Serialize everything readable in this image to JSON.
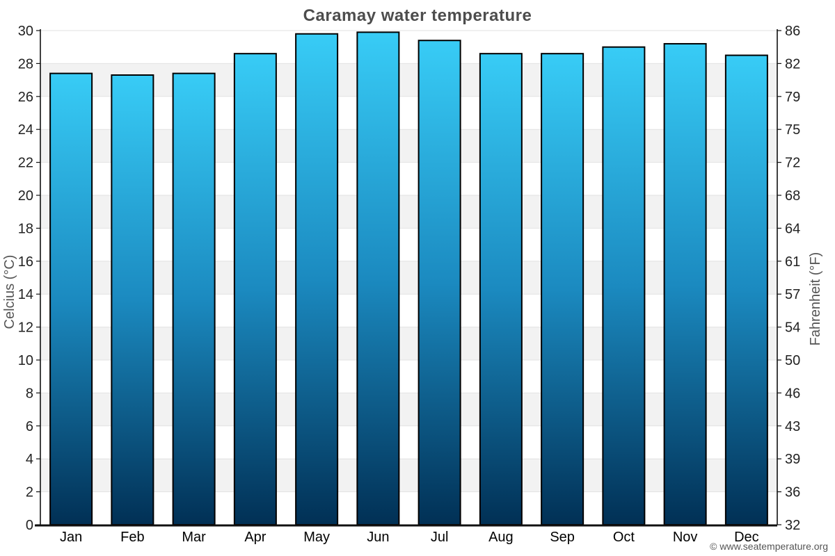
{
  "title": "Caramay water temperature",
  "footer": {
    "credit": "© www.seatemperature.org"
  },
  "chart_data": {
    "type": "bar",
    "title": "Caramay water temperature",
    "categories": [
      "Jan",
      "Feb",
      "Mar",
      "Apr",
      "May",
      "Jun",
      "Jul",
      "Aug",
      "Sep",
      "Oct",
      "Nov",
      "Dec"
    ],
    "series": [
      {
        "name": "Water temperature",
        "unit": "°C",
        "values": [
          27.4,
          27.3,
          27.4,
          28.6,
          29.8,
          29.9,
          29.4,
          28.6,
          28.6,
          29.0,
          29.2,
          28.5
        ]
      }
    ],
    "xlabel": "",
    "ylabel_left": "Celcius (°C)",
    "ylabel_right": "Fahrenheit (°F)",
    "ylim": [
      0,
      30
    ],
    "y_left_ticks": [
      0,
      2,
      4,
      6,
      8,
      10,
      12,
      14,
      16,
      18,
      20,
      22,
      24,
      26,
      28,
      30
    ],
    "y_right_tick_labels": [
      "32",
      "36",
      "39",
      "43",
      "46",
      "50",
      "54",
      "57",
      "61",
      "64",
      "68",
      "72",
      "75",
      "79",
      "82",
      "86"
    ],
    "grid": true,
    "legend_position": "none",
    "band_alternating": true,
    "colors": {
      "bar_gradient_top": "#38CCF6",
      "bar_gradient_mid": "#1B8AC0",
      "bar_gradient_bottom": "#013055",
      "bar_border": "#000000",
      "band_alt": "#F2F2F2",
      "gridline": "#E2E2E2",
      "axis_line": "#111111",
      "title": "#4D4D4D",
      "tick_label": "#222222",
      "axis_label": "#555555",
      "footer": "#555555"
    }
  }
}
